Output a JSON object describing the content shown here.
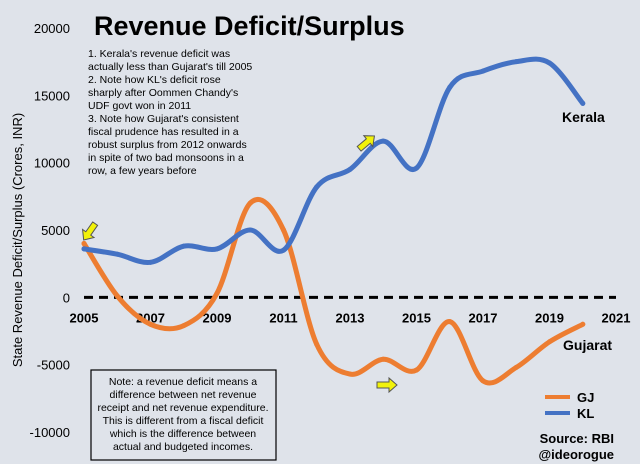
{
  "chart_data": {
    "type": "line",
    "title": "Revenue Deficit/Surplus",
    "xlabel": "",
    "ylabel": "State Revenue Deficit/Surplus (Crores, INR)",
    "xlim": [
      2005,
      2021
    ],
    "ylim": [
      -10000,
      20000
    ],
    "x_ticks": [
      "2005",
      "2007",
      "2009",
      "2011",
      "2013",
      "2015",
      "2017",
      "2019",
      "2021"
    ],
    "y_ticks": [
      "20000",
      "15000",
      "10000",
      "5000",
      "0",
      "-5000",
      "-10000"
    ],
    "legend_position": "bottom-right",
    "colors": {
      "kerala": "#4472c4",
      "gujarat": "#ed7d31",
      "zero_line": "#000000",
      "arrow": "#f2f20a",
      "background": "#dfe3ea"
    },
    "series": [
      {
        "name": "KL",
        "label": "Kerala",
        "color": "#4472c4",
        "x": [
          2005,
          2006,
          2007,
          2008,
          2009,
          2010,
          2011,
          2012,
          2013,
          2014,
          2015,
          2016,
          2017,
          2018,
          2019,
          2020
        ],
        "values": [
          3600,
          3200,
          2600,
          3800,
          3600,
          5000,
          3500,
          8200,
          9500,
          11600,
          9600,
          15600,
          16800,
          17500,
          17400,
          14400
        ]
      },
      {
        "name": "GJ",
        "label": "Gujarat",
        "color": "#ed7d31",
        "x": [
          2005,
          2006,
          2007,
          2008,
          2009,
          2010,
          2011,
          2012,
          2013,
          2014,
          2015,
          2016,
          2017,
          2018,
          2019,
          2020
        ],
        "values": [
          4000,
          100,
          -2000,
          -2100,
          300,
          7000,
          5000,
          -3500,
          -5700,
          -4600,
          -5400,
          -1800,
          -6200,
          -5200,
          -3300,
          -2000
        ]
      }
    ],
    "annotations": {
      "notes_lines": [
        "1. Kerala's revenue deficit was",
        "actually less than Gujarat's till 2005",
        "2. Note how KL's deficit rose",
        "sharply after Oommen Chandy's",
        "UDF govt won in 2011",
        "3. Note how Gujarat's consistent",
        "fiscal prudence has resulted in a",
        "robust surplus from 2012 onwards",
        "in spite of two bad monsoons in a",
        "row, a few years before"
      ],
      "definition_lines": [
        "Note: a revenue deficit means a",
        "difference between net revenue",
        "receipt and net revenue expenditure.",
        "This is different from a fiscal deficit",
        "which is the difference between",
        "actual and budgeted incomes."
      ],
      "kerala_label": "Kerala",
      "gujarat_label": "Gujarat",
      "source": "Source: RBI",
      "handle": "@ideorogue"
    }
  }
}
